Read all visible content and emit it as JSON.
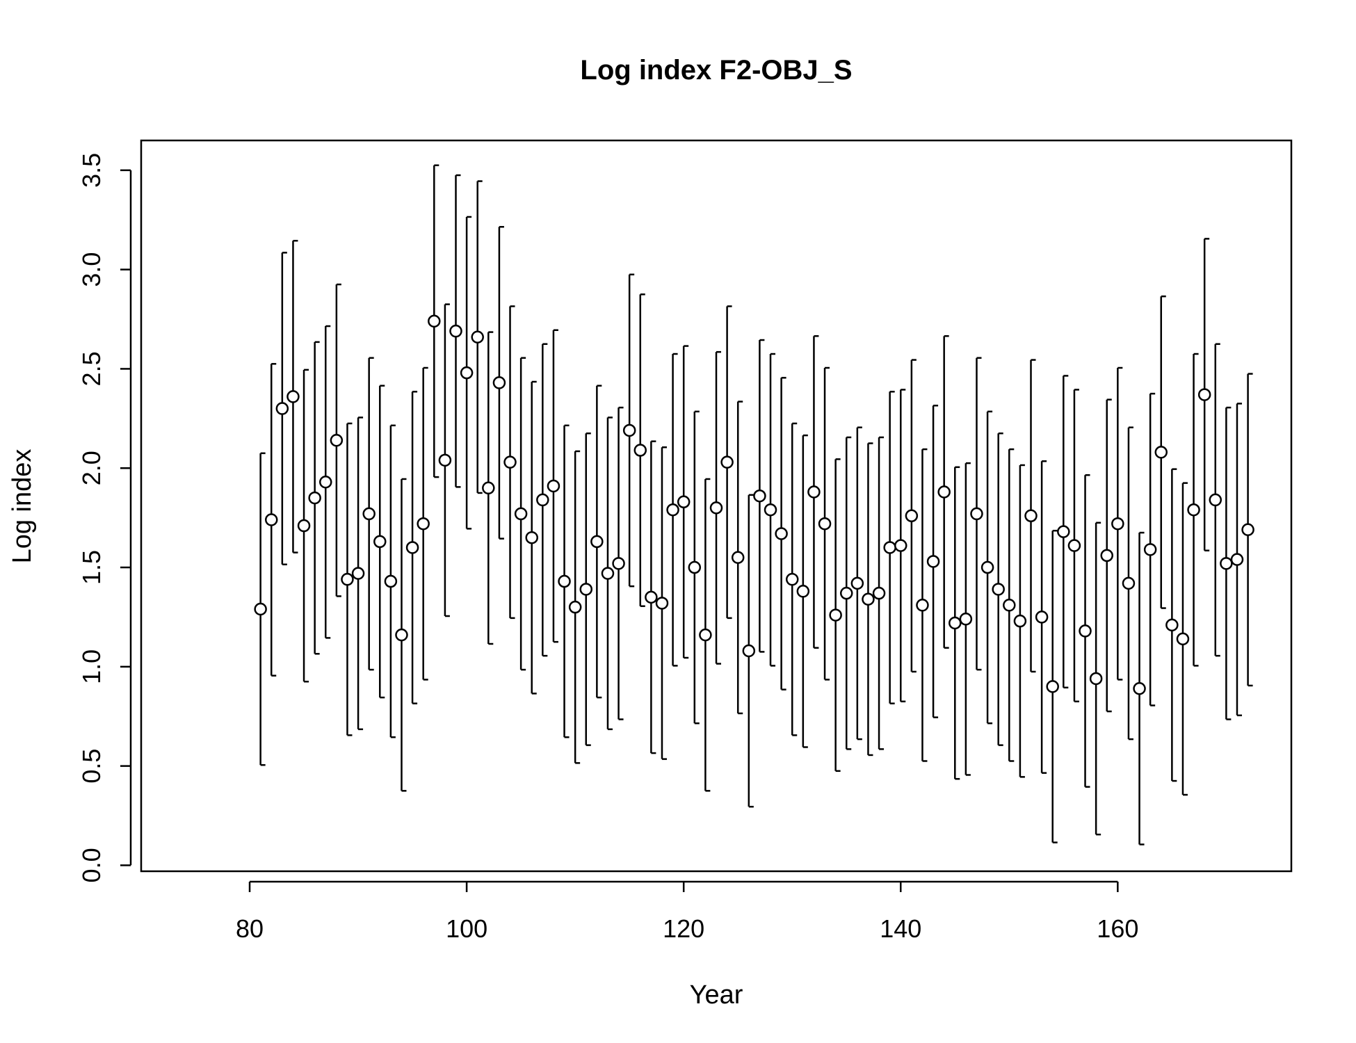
{
  "chart_data": {
    "type": "scatter",
    "title": "Log index F2-OBJ_S",
    "xlabel": "Year",
    "ylabel": "Log index",
    "xlim": [
      70,
      176
    ],
    "ylim": [
      -0.03,
      3.65
    ],
    "xticks": [
      80,
      100,
      120,
      140,
      160
    ],
    "yticks": [
      0.0,
      0.5,
      1.0,
      1.5,
      2.0,
      2.5,
      3.0,
      3.5
    ],
    "xtick_labels": [
      "80",
      "100",
      "120",
      "140",
      "160"
    ],
    "ytick_labels": [
      "0.0",
      "0.5",
      "1.0",
      "1.5",
      "2.0",
      "2.5",
      "3.0",
      "3.5"
    ],
    "grid": false,
    "legend": "none",
    "error_half_width": 0.785,
    "x": [
      81,
      82,
      83,
      84,
      85,
      86,
      87,
      88,
      89,
      90,
      91,
      92,
      93,
      94,
      95,
      96,
      97,
      98,
      99,
      100,
      101,
      102,
      103,
      104,
      105,
      106,
      107,
      108,
      109,
      110,
      111,
      112,
      113,
      114,
      115,
      116,
      117,
      118,
      119,
      120,
      121,
      122,
      123,
      124,
      125,
      126,
      127,
      128,
      129,
      130,
      131,
      132,
      133,
      134,
      135,
      136,
      137,
      138,
      139,
      140,
      141,
      142,
      143,
      144,
      145,
      146,
      147,
      148,
      149,
      150,
      151,
      152,
      153,
      154,
      155,
      156,
      157,
      158,
      159,
      160,
      161,
      162,
      163,
      164,
      165,
      166,
      167,
      168,
      169,
      170,
      171,
      172
    ],
    "y": [
      1.29,
      1.74,
      2.3,
      2.36,
      1.71,
      1.85,
      1.93,
      2.14,
      1.44,
      1.47,
      1.77,
      1.63,
      1.43,
      1.16,
      1.6,
      1.72,
      2.74,
      2.04,
      2.69,
      2.48,
      2.66,
      1.9,
      2.43,
      2.03,
      1.77,
      1.65,
      1.84,
      1.91,
      1.43,
      1.3,
      1.39,
      1.63,
      1.47,
      1.52,
      2.19,
      2.09,
      1.35,
      1.32,
      1.79,
      1.83,
      1.5,
      1.16,
      1.8,
      2.03,
      1.55,
      1.08,
      1.86,
      1.79,
      1.67,
      1.44,
      1.38,
      1.88,
      1.72,
      1.26,
      1.37,
      1.42,
      1.34,
      1.37,
      1.6,
      1.61,
      1.76,
      1.31,
      1.53,
      1.88,
      1.22,
      1.24,
      1.77,
      1.5,
      1.39,
      1.31,
      1.23,
      1.76,
      1.25,
      0.9,
      1.68,
      1.61,
      1.18,
      0.94,
      1.56,
      1.72,
      1.42,
      0.89,
      1.59,
      2.08,
      1.21,
      1.14,
      1.79,
      2.37,
      1.84,
      1.52,
      1.54,
      1.69
    ]
  }
}
